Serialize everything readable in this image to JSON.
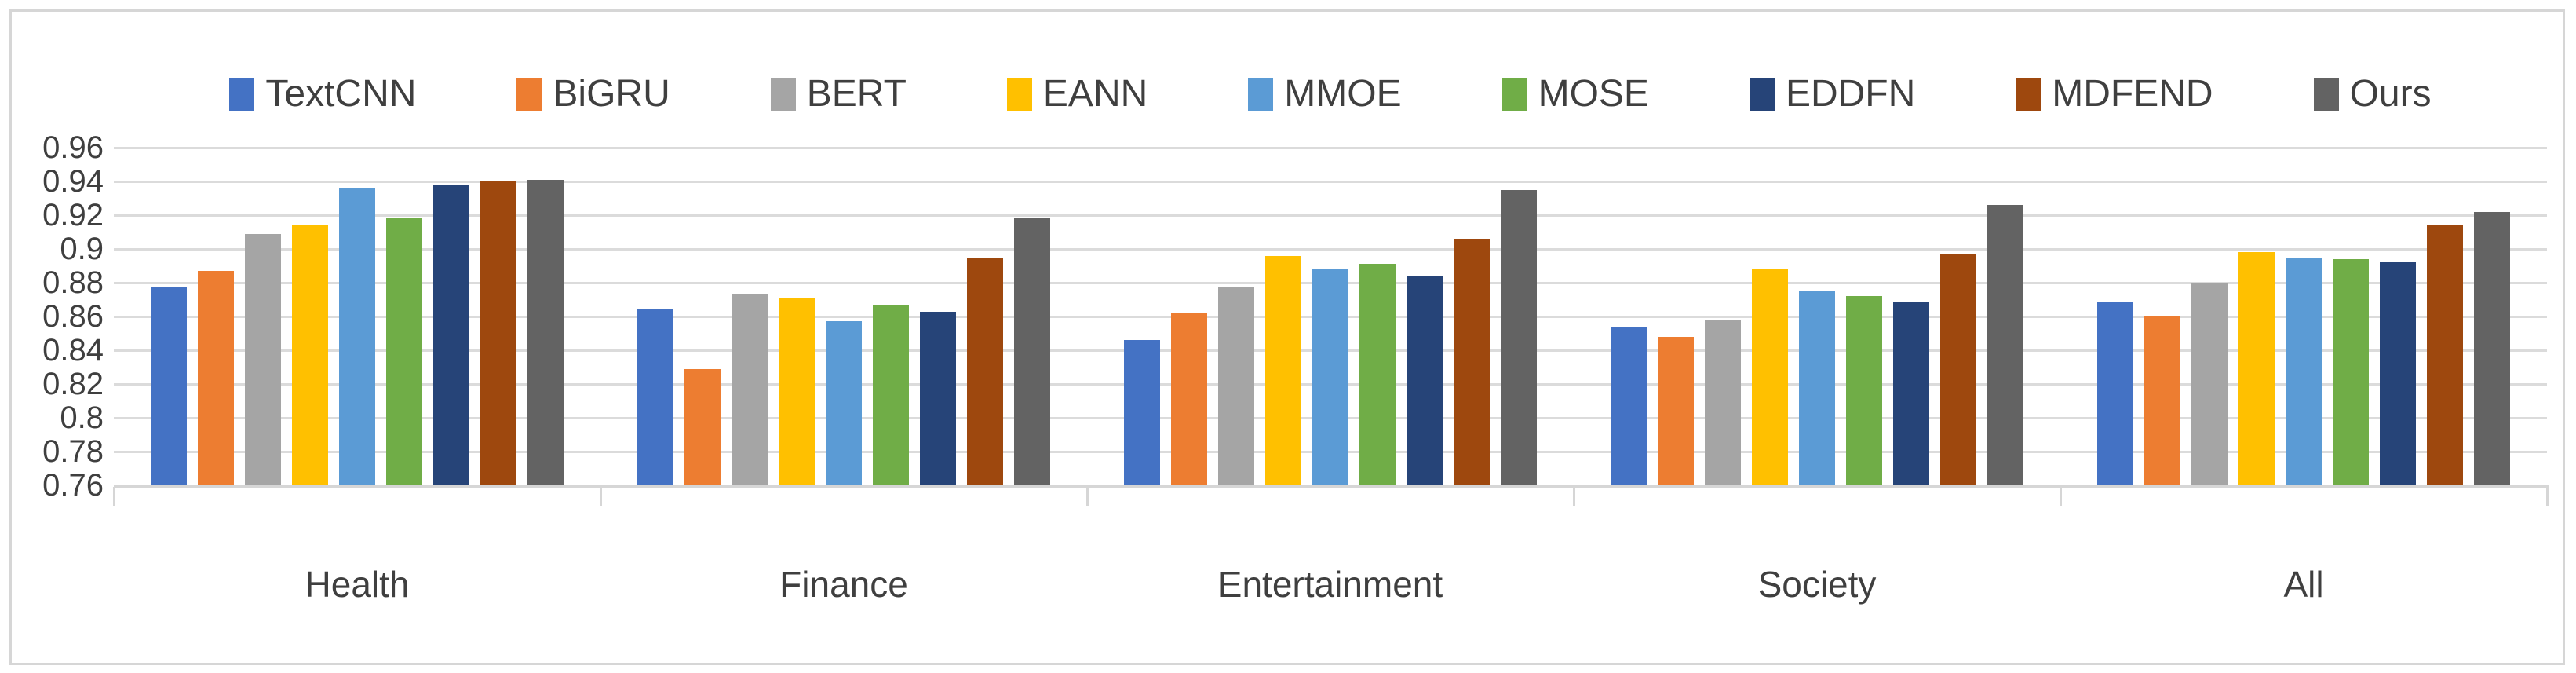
{
  "chart_data": {
    "type": "bar",
    "title": "",
    "xlabel": "",
    "ylabel": "",
    "categories": [
      "Health",
      "Finance",
      "Entertainment",
      "Society",
      "All"
    ],
    "series": [
      {
        "name": "TextCNN",
        "color": "#4472C4",
        "values": [
          0.877,
          0.864,
          0.846,
          0.854,
          0.869
        ]
      },
      {
        "name": "BiGRU",
        "color": "#ED7D31",
        "values": [
          0.887,
          0.829,
          0.862,
          0.848,
          0.86
        ]
      },
      {
        "name": "BERT",
        "color": "#A5A5A5",
        "values": [
          0.909,
          0.873,
          0.877,
          0.858,
          0.88
        ]
      },
      {
        "name": "EANN",
        "color": "#FFC000",
        "values": [
          0.914,
          0.871,
          0.896,
          0.888,
          0.898
        ]
      },
      {
        "name": "MMOE",
        "color": "#5B9BD5",
        "values": [
          0.936,
          0.857,
          0.888,
          0.875,
          0.895
        ]
      },
      {
        "name": "MOSE",
        "color": "#70AD47",
        "values": [
          0.918,
          0.867,
          0.891,
          0.872,
          0.894
        ]
      },
      {
        "name": "EDDFN",
        "color": "#264478",
        "values": [
          0.938,
          0.863,
          0.884,
          0.869,
          0.892
        ]
      },
      {
        "name": "MDFEND",
        "color": "#9E480E",
        "values": [
          0.94,
          0.895,
          0.906,
          0.897,
          0.914
        ]
      },
      {
        "name": "Ours",
        "color": "#636363",
        "values": [
          0.941,
          0.918,
          0.935,
          0.926,
          0.922
        ]
      }
    ],
    "ylim": [
      0.76,
      0.96
    ],
    "ytick_step": 0.02,
    "ytick_labels": [
      "0.96",
      "0.94",
      "0.92",
      "0.9",
      "0.88",
      "0.86",
      "0.84",
      "0.82",
      "0.8",
      "0.78",
      "0.76"
    ],
    "grid": true,
    "legend_position": "top-center",
    "gridline_color": "#DBDBDB",
    "axis_color": "#D6D6D6",
    "text_color": "#3F3F3F"
  }
}
